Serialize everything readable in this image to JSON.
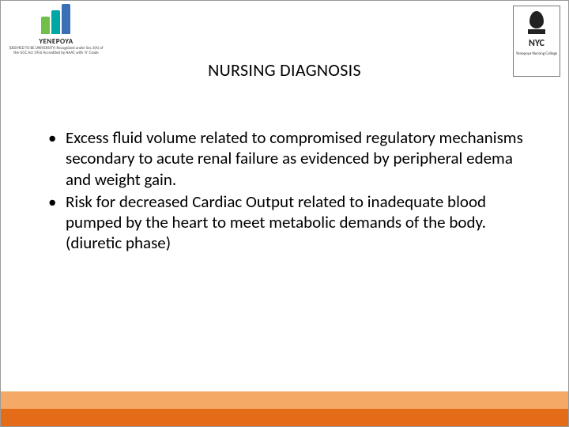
{
  "title": "NURSING DIAGNOSIS",
  "bullets": [
    "Excess fluid volume related to compromised regulatory mechanisms secondary to acute renal failure as evidenced by peripheral edema and weight gain.",
    "Risk for decreased Cardiac Output related to inadequate blood pumped by the heart to meet metabolic demands of the body. (diuretic phase)"
  ],
  "logo_left": {
    "name": "YENEPOYA",
    "subtitle": "(DEEMED TO BE UNIVERSITY)\nRecognized under Sec 3(A) of the UGC Act 1956\nAccredited by NAAC with 'A' Grade",
    "bar_colors": [
      "#6fbf4a",
      "#00a8a5",
      "#3a6fb7"
    ]
  },
  "logo_right": {
    "abbrev": "NYC",
    "subtitle": "Yenepoya\nNursing College"
  },
  "footer": {
    "band_top_color": "#f4aa66",
    "band_bottom_color": "#e46b17"
  },
  "colors": {
    "text": "#000000",
    "background": "#ffffff"
  },
  "typography": {
    "title_fontsize": 22,
    "body_fontsize": 21,
    "font_family": "Calibri"
  }
}
